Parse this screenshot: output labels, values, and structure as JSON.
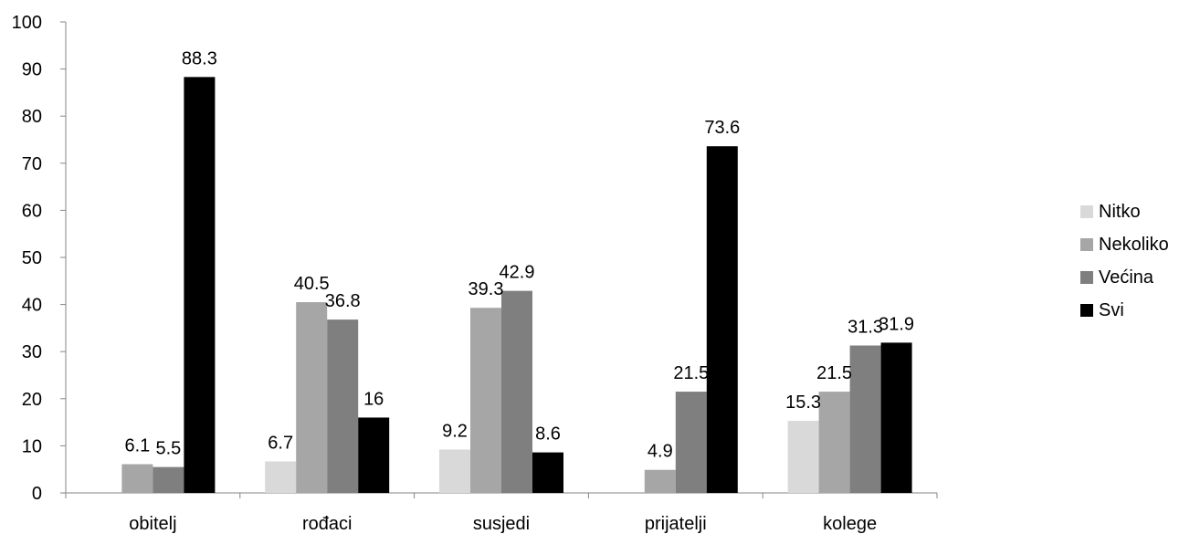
{
  "chart_data": {
    "type": "bar",
    "categories": [
      "obitelj",
      "rođaci",
      "susjedi",
      "prijatelji",
      "kolege"
    ],
    "series": [
      {
        "name": "Nitko",
        "color": "#d9d9d9",
        "values": [
          null,
          6.7,
          9.2,
          null,
          15.3
        ]
      },
      {
        "name": "Nekoliko",
        "color": "#a6a6a6",
        "values": [
          6.1,
          40.5,
          39.3,
          4.9,
          21.5
        ]
      },
      {
        "name": "Većina",
        "color": "#7f7f7f",
        "values": [
          5.5,
          36.8,
          42.9,
          21.5,
          31.3
        ]
      },
      {
        "name": "Svi",
        "color": "#000000",
        "values": [
          88.3,
          16,
          8.6,
          73.6,
          31.9
        ]
      }
    ],
    "ylim": [
      0,
      100
    ],
    "yticks": [
      0,
      10,
      20,
      30,
      40,
      50,
      60,
      70,
      80,
      90,
      100
    ],
    "legend_position": "right",
    "grid": false
  }
}
